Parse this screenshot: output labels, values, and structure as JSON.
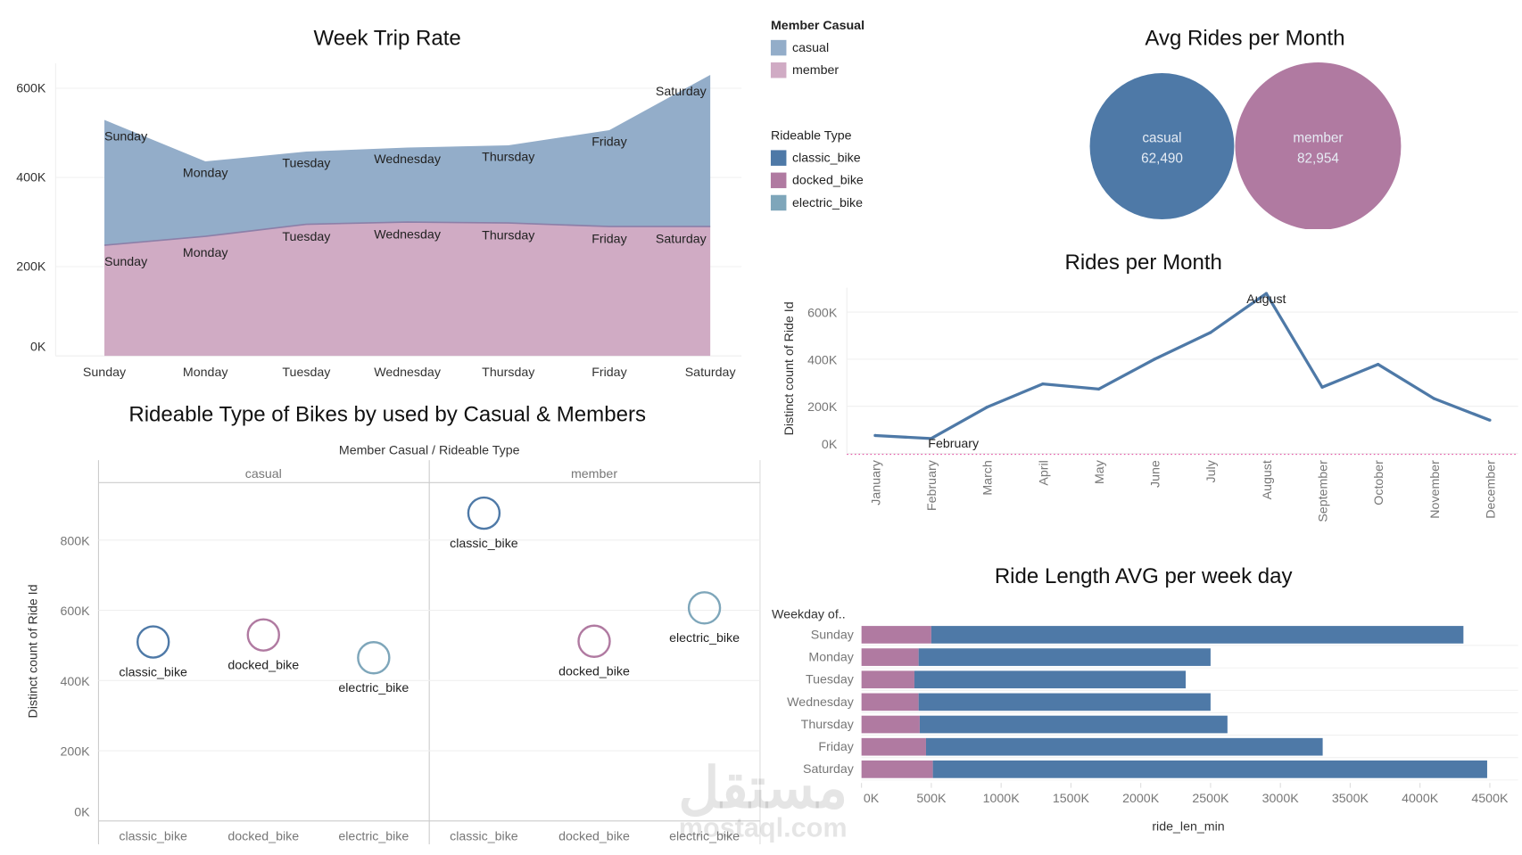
{
  "colors": {
    "casual_area": "#93adc9",
    "member_area": "#d0abc4",
    "classic_bike": "#4e79a7",
    "docked_bike": "#b07aa1",
    "electric_bike": "#7ea6ba",
    "line": "#4e79a7"
  },
  "legend": {
    "member_casual": {
      "title": "Member Casual",
      "items": [
        {
          "label": "casual",
          "color": "#93adc9"
        },
        {
          "label": "member",
          "color": "#d0abc4"
        }
      ]
    },
    "rideable_type": {
      "title": "Rideable Type",
      "items": [
        {
          "label": "classic_bike",
          "color": "#4e79a7"
        },
        {
          "label": "docked_bike",
          "color": "#b07aa1"
        },
        {
          "label": "electric_bike",
          "color": "#7ea6ba"
        }
      ]
    }
  },
  "watermark": {
    "arabic": "مستقل",
    "latin": "mostaql.com"
  },
  "chart_data": [
    {
      "type": "area",
      "title": "Week Trip Rate",
      "stacked": true,
      "categories": [
        "Sunday",
        "Monday",
        "Tuesday",
        "Wednesday",
        "Thursday",
        "Friday",
        "Saturday"
      ],
      "series": [
        {
          "name": "member",
          "values": [
            248,
            268,
            295,
            300,
            298,
            290,
            290
          ]
        },
        {
          "name": "casual",
          "values": [
            281,
            168,
            163,
            167,
            174,
            216,
            340
          ]
        }
      ],
      "unit": "K",
      "ylim": [
        0,
        640
      ],
      "yticks": [
        "0K",
        "200K",
        "400K",
        "600K"
      ],
      "ytick_values": [
        0,
        200,
        400,
        600
      ],
      "grid": true
    },
    {
      "type": "bubble",
      "title": "Avg Rides per Month",
      "categories": [
        "casual",
        "member"
      ],
      "values": [
        "62,490",
        "82,954"
      ],
      "numeric_values": [
        62490,
        82954
      ]
    },
    {
      "type": "line",
      "title": "Rides per Month",
      "ylabel": "Distinct count of Ride Id",
      "categories": [
        "January",
        "February",
        "March",
        "April",
        "May",
        "June",
        "July",
        "August",
        "September",
        "October",
        "November",
        "December"
      ],
      "values": [
        76,
        63,
        196,
        295,
        273,
        400,
        513,
        679,
        281,
        378,
        233,
        141
      ],
      "unit": "K",
      "ylim": [
        0,
        700
      ],
      "yticks": [
        "0K",
        "200K",
        "400K",
        "600K"
      ],
      "ytick_values": [
        0,
        200,
        400,
        600
      ],
      "annotations": [
        {
          "category": "February",
          "text": "February"
        },
        {
          "category": "August",
          "text": "August"
        }
      ],
      "grid": true
    },
    {
      "type": "scatter",
      "title": "Rideable Type of Bikes by used by  Casual & Members",
      "header": "Member Casual  /  Rideable Type",
      "panels": [
        {
          "name": "casual",
          "categories": [
            "classic_bike",
            "docked_bike",
            "electric_bike"
          ],
          "values": [
            510,
            530,
            465
          ]
        },
        {
          "name": "member",
          "categories": [
            "classic_bike",
            "docked_bike",
            "electric_bike"
          ],
          "values": [
            877,
            512,
            607
          ]
        }
      ],
      "ylabel": "Distinct count of Ride Id",
      "unit": "K",
      "ylim": [
        0,
        950
      ],
      "yticks": [
        "0K",
        "200K",
        "400K",
        "600K",
        "800K"
      ],
      "ytick_values": [
        0,
        200,
        400,
        600,
        800
      ],
      "grid": true
    },
    {
      "type": "bar",
      "orientation": "horizontal",
      "stacked": true,
      "title": "Ride Length AVG per week day",
      "ylabel": "Weekday of..",
      "xlabel": "ride_len_min",
      "categories": [
        "Sunday",
        "Monday",
        "Tuesday",
        "Wednesday",
        "Thursday",
        "Friday",
        "Saturday"
      ],
      "series": [
        {
          "values": [
            500,
            409,
            379,
            409,
            417,
            462,
            511
          ],
          "color": "#b07aa1"
        },
        {
          "values": [
            3811,
            2091,
            1943,
            2091,
            2204,
            2841,
            3970
          ],
          "color": "#4e79a7"
        }
      ],
      "unit": "K",
      "xlim": [
        0,
        4500
      ],
      "xticks": [
        "0K",
        "500K",
        "1000K",
        "1500K",
        "2000K",
        "2500K",
        "3000K",
        "3500K",
        "4000K",
        "4500K"
      ],
      "xtick_values": [
        0,
        500,
        1000,
        1500,
        2000,
        2500,
        3000,
        3500,
        4000,
        4500
      ]
    }
  ]
}
